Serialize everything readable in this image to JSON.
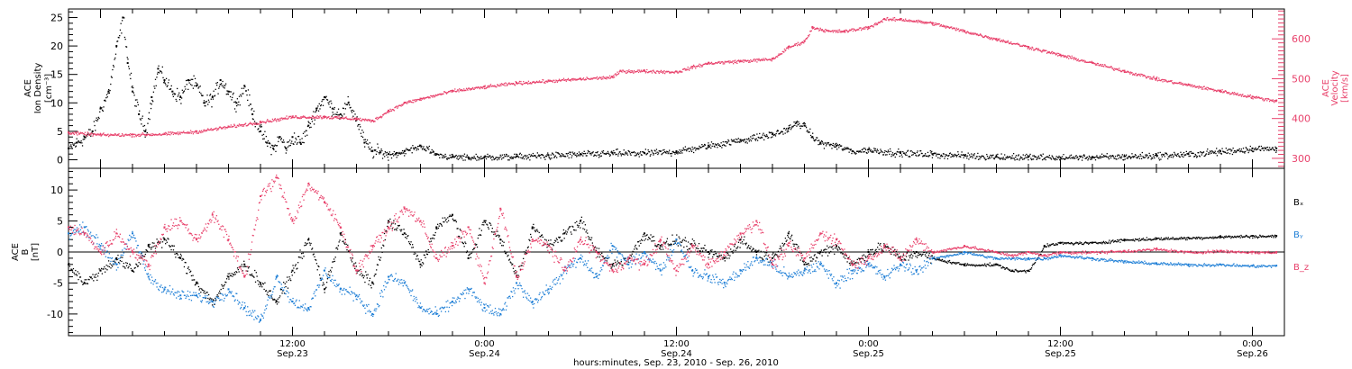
{
  "colors": {
    "black": "#000000",
    "pink": "#e8416b",
    "blue": "#1f7fd6"
  },
  "xaxis": {
    "label": "hours:minutes, Sep. 23, 2010 - Sep. 26, 2010",
    "range_hours": [
      -14,
      62
    ],
    "ticks": [
      {
        "hour": 0,
        "time": "12:00",
        "date": "Sep.23"
      },
      {
        "hour": 12,
        "time": "0:00",
        "date": "Sep.24"
      },
      {
        "hour": 24,
        "time": "12:00",
        "date": "Sep.24"
      },
      {
        "hour": 36,
        "time": "0:00",
        "date": "Sep.25"
      },
      {
        "hour": 48,
        "time": "12:00",
        "date": "Sep.25"
      },
      {
        "hour": 60,
        "time": "0:00",
        "date": "Sep.26"
      }
    ]
  },
  "chart_data": [
    {
      "type": "scatter",
      "panel": "top",
      "left_axis": {
        "label_lines": [
          "ACE",
          "Ion Density",
          "[cm⁻³]"
        ],
        "ylim": [
          -1.5,
          26.5
        ],
        "ticks": [
          0,
          5,
          10,
          15,
          20,
          25
        ]
      },
      "right_axis": {
        "label_lines": [
          "ACE",
          "Velocity",
          "[km/s]"
        ],
        "ylim": [
          275,
          675
        ],
        "ticks": [
          300,
          400,
          500,
          600
        ]
      },
      "series": [
        {
          "axis": "left",
          "color": "black",
          "x_hours": [
            -14,
            -13.5,
            -13,
            -12.5,
            -12,
            -11.5,
            -11,
            -10.6,
            -10.3,
            -10,
            -9.6,
            -9.2,
            -8.8,
            -8.4,
            -8,
            -7.5,
            -7,
            -6.5,
            -6,
            -5.5,
            -5,
            -4.5,
            -4,
            -3.5,
            -3,
            -2.5,
            -2,
            -1.6,
            -1.2,
            -0.8,
            -0.4,
            0,
            0.5,
            1,
            1.5,
            2,
            2.5,
            3,
            3.5,
            4,
            4.5,
            5,
            5.5,
            6,
            6.5,
            7,
            8,
            9,
            10,
            11,
            12,
            14,
            16,
            18,
            20,
            22,
            24,
            26,
            28,
            30,
            31,
            31.5,
            32,
            32.5,
            33,
            34,
            35,
            36,
            38,
            40,
            42,
            44,
            46,
            48,
            50,
            52,
            54,
            56,
            58,
            60,
            61.5
          ],
          "y": [
            2,
            3,
            4,
            5,
            9,
            12,
            20,
            25,
            17,
            12,
            8,
            5,
            11,
            16,
            14,
            12,
            11,
            14,
            13,
            10,
            11,
            14,
            12,
            10,
            13,
            8,
            5,
            3,
            2,
            4,
            2,
            4,
            3,
            6,
            9,
            11,
            9,
            8,
            10,
            7,
            3,
            1.5,
            1.3,
            1,
            1.2,
            1.5,
            2.5,
            1,
            0.5,
            0.4,
            0.5,
            0.6,
            0.8,
            1,
            1.2,
            1.2,
            1.5,
            2.5,
            3.5,
            4.5,
            5.5,
            6.5,
            6,
            4,
            3,
            2.5,
            1.5,
            1.8,
            1.2,
            1,
            0.8,
            0.6,
            0.5,
            0.4,
            0.5,
            0.6,
            0.8,
            1,
            1.5,
            2,
            2
          ]
        },
        {
          "axis": "right",
          "color": "pink",
          "x_hours": [
            -14,
            -12,
            -10,
            -8,
            -6,
            -4,
            -2,
            0,
            2,
            4,
            5,
            6,
            7,
            8,
            10,
            12,
            14,
            16,
            18,
            20,
            20.5,
            22,
            24,
            25,
            26,
            28,
            30,
            31,
            32,
            32.5,
            33.5,
            34.5,
            36,
            37,
            38,
            40,
            42,
            44,
            46,
            48,
            50,
            52,
            54,
            56,
            58,
            60,
            61.5
          ],
          "y": [
            365,
            360,
            360,
            362,
            368,
            380,
            392,
            405,
            405,
            400,
            395,
            420,
            440,
            450,
            470,
            480,
            490,
            495,
            500,
            505,
            520,
            520,
            518,
            530,
            540,
            545,
            550,
            580,
            595,
            630,
            620,
            620,
            630,
            650,
            650,
            640,
            620,
            600,
            580,
            560,
            540,
            520,
            500,
            485,
            470,
            455,
            445
          ]
        }
      ]
    },
    {
      "type": "scatter",
      "panel": "bottom",
      "left_axis": {
        "label_lines": [
          "ACE",
          "B",
          "[nT]"
        ],
        "ylim": [
          -13.5,
          13.5
        ],
        "ticks": [
          -10,
          -5,
          0,
          5,
          10
        ]
      },
      "legend": {
        "placement": "right",
        "entries": [
          {
            "label": "Bₓ",
            "color": "black"
          },
          {
            "label": "Bᵧ",
            "color": "blue"
          },
          {
            "label": "B_z",
            "color": "pink"
          }
        ]
      },
      "series": [
        {
          "name": "Bₓ",
          "color": "black",
          "x_hours": [
            -14,
            -13,
            -12,
            -11,
            -10,
            -9,
            -8,
            -7,
            -6,
            -5,
            -4,
            -3,
            -2,
            -1,
            0,
            1,
            2,
            3,
            4,
            5,
            6,
            7,
            8,
            9,
            10,
            11,
            12,
            13,
            14,
            15,
            16,
            17,
            18,
            19,
            20,
            21,
            22,
            23,
            24,
            25,
            26,
            27,
            28,
            29,
            30,
            31,
            32,
            33,
            34,
            35,
            36,
            37,
            38,
            39,
            40,
            42,
            44,
            45,
            46,
            47,
            48,
            50,
            52,
            54,
            56,
            58,
            60,
            61.5
          ],
          "y": [
            -2,
            -5,
            -3,
            -1,
            -3,
            1,
            2,
            -1,
            -5,
            -8,
            -4,
            -2,
            -5,
            -8,
            -3,
            2,
            -6,
            3,
            -3,
            -5,
            5,
            3,
            -2,
            4,
            6,
            -1,
            5,
            2,
            -4,
            4,
            1,
            3,
            5,
            0,
            -2,
            -1,
            3,
            1,
            2,
            1,
            0,
            -1,
            2,
            0,
            -1,
            3,
            -2,
            0,
            1,
            -2,
            0,
            1,
            -1,
            0,
            -1,
            -2,
            -2,
            -3,
            -3,
            1,
            1.5,
            1.5,
            2,
            2.2,
            2.3,
            2.5,
            2.6,
            2.6
          ]
        },
        {
          "name": "Bᵧ",
          "color": "blue",
          "x_hours": [
            -14,
            -13,
            -12,
            -11,
            -10,
            -9,
            -8,
            -7,
            -6,
            -5,
            -4,
            -3,
            -2,
            -1,
            0,
            1,
            2,
            3,
            4,
            5,
            6,
            7,
            8,
            9,
            10,
            11,
            12,
            13,
            14,
            15,
            16,
            17,
            18,
            19,
            20,
            21,
            22,
            23,
            24,
            25,
            26,
            27,
            28,
            29,
            30,
            31,
            32,
            33,
            34,
            35,
            36,
            37,
            38,
            39,
            40,
            42,
            44,
            45,
            46,
            47,
            48,
            50,
            52,
            54,
            56,
            58,
            60,
            61.5
          ],
          "y": [
            3,
            4,
            1,
            -2,
            3,
            -4,
            -6,
            -7,
            -7,
            -8,
            -6,
            -9,
            -11,
            -4,
            -8,
            -9,
            -3,
            -6,
            -7,
            -10,
            -4,
            -5,
            -9,
            -10,
            -8,
            -6,
            -9,
            -10,
            -5,
            -8,
            -6,
            -3,
            -1,
            -4,
            1,
            -2,
            0,
            -3,
            2,
            -3,
            -4,
            -5,
            -3,
            -1,
            -2,
            -4,
            -3,
            -2,
            -5,
            -3,
            -2,
            -4,
            -2,
            -3,
            -1,
            0,
            -1,
            -1,
            -1,
            -1,
            -0.5,
            -1,
            -1.5,
            -1.8,
            -2,
            -2,
            -2.2,
            -2.2
          ]
        },
        {
          "name": "B_z",
          "color": "pink",
          "x_hours": [
            -14,
            -13,
            -12,
            -11,
            -10,
            -9,
            -8,
            -7,
            -6,
            -5,
            -4,
            -3,
            -2,
            -1,
            0,
            1,
            2,
            3,
            4,
            5,
            6,
            7,
            8,
            9,
            10,
            11,
            12,
            13,
            14,
            15,
            16,
            17,
            18,
            19,
            20,
            21,
            22,
            23,
            24,
            25,
            26,
            27,
            28,
            29,
            30,
            31,
            32,
            33,
            34,
            35,
            36,
            37,
            38,
            39,
            40,
            42,
            44,
            45,
            46,
            47,
            48,
            50,
            52,
            54,
            56,
            58,
            60,
            61.5
          ],
          "y": [
            4,
            3,
            0,
            3,
            0,
            -2,
            4,
            5,
            2,
            6,
            2,
            -4,
            9,
            12,
            5,
            11,
            8,
            4,
            -3,
            1,
            4,
            7,
            5,
            -1,
            1,
            4,
            -5,
            7,
            -4,
            2,
            1,
            -3,
            2,
            0,
            -3,
            -1,
            -2,
            2,
            -3,
            1,
            -2,
            0,
            3,
            5,
            -2,
            1,
            -1,
            3,
            2,
            -2,
            -1,
            1,
            -1,
            2,
            0,
            1,
            0,
            -0.5,
            0,
            -0.5,
            0,
            0,
            0.2,
            0.5,
            0,
            0.2,
            0,
            0
          ]
        }
      ]
    }
  ]
}
